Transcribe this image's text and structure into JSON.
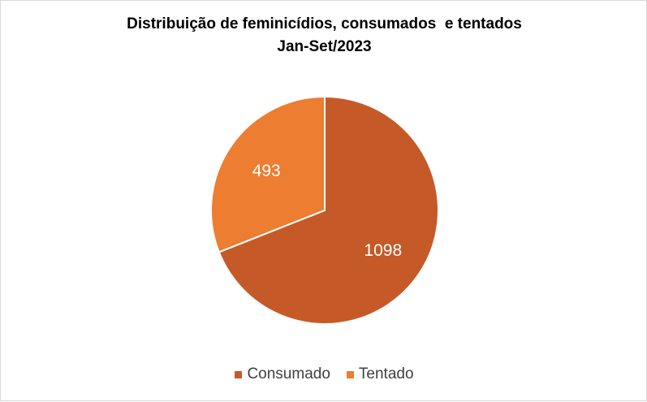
{
  "chart_data": {
    "type": "pie",
    "title": "Distribuição de feminicídios, consumados  e tentados",
    "subtitle": "Jan-Set/2023",
    "categories": [
      "Consumado",
      "Tentado"
    ],
    "values": [
      1098,
      493
    ],
    "data_labels": [
      "1098",
      "493"
    ],
    "colors": [
      "#c55a28",
      "#ed7d31"
    ],
    "legend_position": "bottom",
    "start_angle": "12 o'clock",
    "direction": "clockwise"
  }
}
